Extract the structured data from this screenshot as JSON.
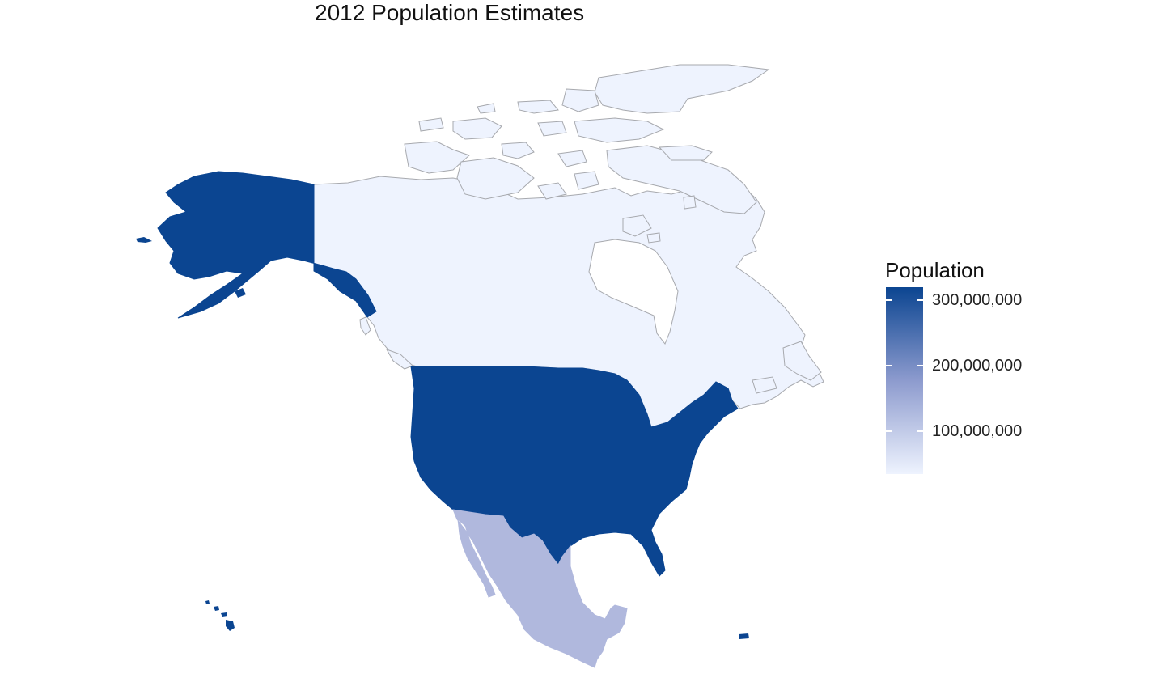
{
  "title": "2012 Population Estimates",
  "legend": {
    "title": "Population",
    "ticks": [
      "300,000,000",
      "200,000,000",
      "100,000,000"
    ],
    "tick_values": [
      300000000,
      200000000,
      100000000
    ],
    "range": [
      35000000,
      320000000
    ],
    "color_low": "#eef3fe",
    "color_high": "#0b4591"
  },
  "colors": {
    "usa": "#0b4591",
    "canada": "#eef3fe",
    "mexico": "#b0b8dd",
    "border": "#a7a9ae"
  },
  "regions": [
    {
      "name": "United States",
      "population": 314000000
    },
    {
      "name": "Canada",
      "population": 34900000
    },
    {
      "name": "Mexico",
      "population": 117000000
    }
  ]
}
